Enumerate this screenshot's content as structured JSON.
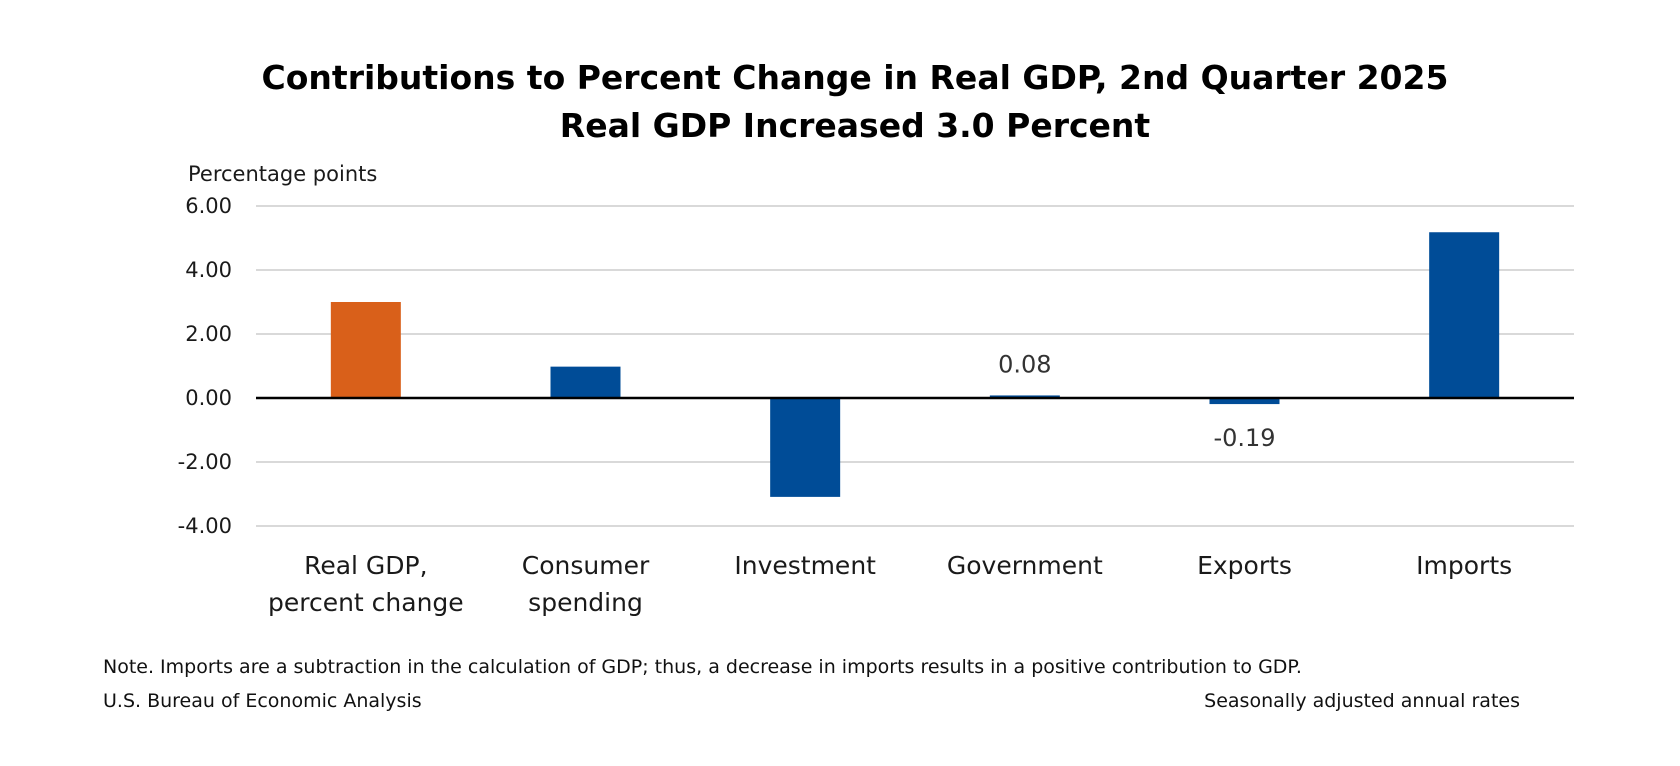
{
  "chart_data": {
    "type": "bar",
    "title": "Contributions to Percent Change in Real GDP, 2nd Quarter 2025",
    "subtitle": "Real GDP Increased 3.0 Percent",
    "ylabel": "Percentage points",
    "xlabel": "",
    "ylim": [
      -4,
      6
    ],
    "yticks": [
      "6.00",
      "4.00",
      "2.00",
      "0.00",
      "-2.00",
      "-4.00"
    ],
    "ytick_values": [
      6,
      4,
      2,
      0,
      -2,
      -4
    ],
    "grid": true,
    "categories": [
      [
        "Real GDP,",
        "percent change"
      ],
      [
        "Consumer",
        "spending"
      ],
      [
        "Investment"
      ],
      [
        "Government"
      ],
      [
        "Exports"
      ],
      [
        "Imports"
      ]
    ],
    "values": [
      3.0,
      0.98,
      -3.09,
      0.08,
      -0.19,
      5.18
    ],
    "data_labels": [
      "",
      "",
      "",
      "0.08",
      "-0.19",
      ""
    ],
    "colors": [
      "#D9601A",
      "#004C97",
      "#004C97",
      "#004C97",
      "#004C97",
      "#004C97"
    ]
  },
  "footer": {
    "note": "Note. Imports are a subtraction in the calculation of GDP; thus, a decrease in imports results in a positive contribution to GDP.",
    "source": "U.S. Bureau of Economic Analysis",
    "rates": "Seasonally adjusted annual rates"
  }
}
